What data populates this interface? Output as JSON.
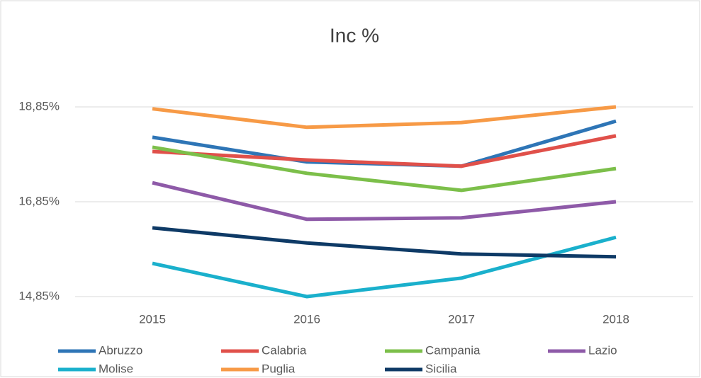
{
  "chart_data": {
    "type": "line",
    "title": "Inc %",
    "categories": [
      "2015",
      "2016",
      "2017",
      "2018"
    ],
    "series": [
      {
        "name": "Abruzzo",
        "color": "#2e75b6",
        "values": [
          18.21,
          17.69,
          17.6,
          18.55
        ]
      },
      {
        "name": "Calabria",
        "color": "#e0504a",
        "values": [
          17.91,
          17.73,
          17.6,
          18.24
        ]
      },
      {
        "name": "Campania",
        "color": "#7cbf4a",
        "values": [
          18.0,
          17.45,
          17.09,
          17.55
        ]
      },
      {
        "name": "Lazio",
        "color": "#8e5aa8",
        "values": [
          17.25,
          16.48,
          16.51,
          16.85
        ]
      },
      {
        "name": "Molise",
        "color": "#1ab0cc",
        "values": [
          15.55,
          14.85,
          15.24,
          16.1
        ]
      },
      {
        "name": "Puglia",
        "color": "#f79a46",
        "values": [
          18.81,
          18.42,
          18.52,
          18.85
        ]
      },
      {
        "name": "Sicilia",
        "color": "#0e3a66",
        "values": [
          16.3,
          15.98,
          15.75,
          15.69
        ]
      }
    ],
    "ylim": [
      14.85,
      19.6
    ],
    "yticks": [
      {
        "value": 14.85,
        "label": "14,85%"
      },
      {
        "value": 16.85,
        "label": "16,85%"
      },
      {
        "value": 18.85,
        "label": "18,85%"
      }
    ],
    "grid": true,
    "legend": "bottom"
  }
}
